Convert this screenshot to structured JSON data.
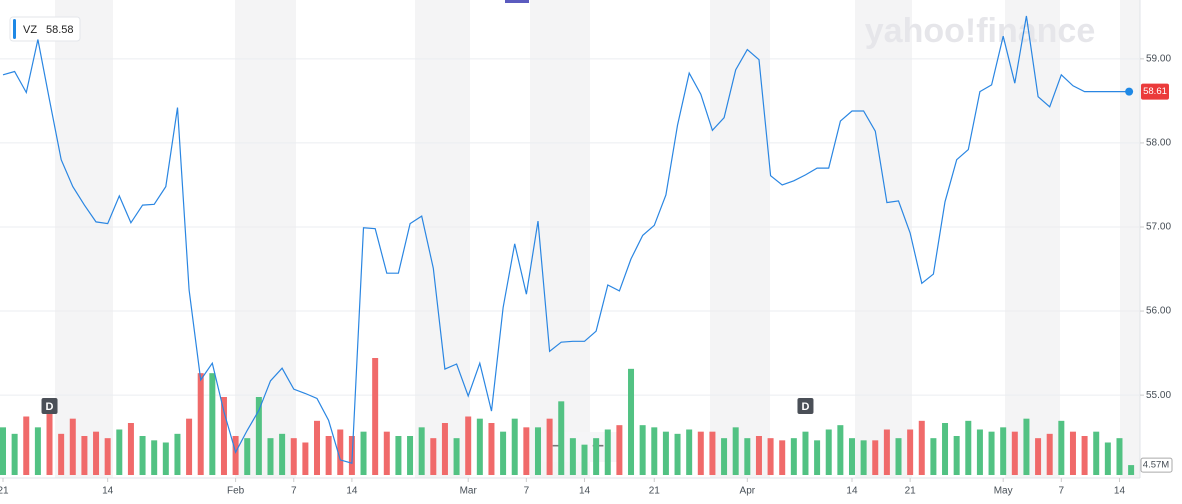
{
  "chart_data": {
    "type": "line",
    "symbol": "VZ",
    "legend_value": 58.58,
    "watermark": "yahoo!finance",
    "categories": [
      "21",
      null,
      null,
      null,
      null,
      null,
      null,
      null,
      null,
      "14",
      null,
      null,
      null,
      null,
      null,
      null,
      null,
      null,
      null,
      null,
      "Feb",
      null,
      null,
      null,
      null,
      "7",
      null,
      null,
      null,
      null,
      "14",
      null,
      null,
      null,
      null,
      null,
      null,
      null,
      null,
      null,
      "Mar",
      null,
      null,
      null,
      null,
      "7",
      null,
      null,
      null,
      null,
      "14",
      null,
      null,
      null,
      null,
      null,
      "21",
      null,
      null,
      null,
      null,
      null,
      null,
      null,
      "Apr",
      null,
      null,
      null,
      null,
      null,
      null,
      null,
      null,
      "14",
      null,
      null,
      null,
      null,
      "21",
      null,
      null,
      null,
      null,
      null,
      null,
      null,
      "May",
      null,
      null,
      null,
      null,
      "7",
      null,
      null,
      null,
      null,
      "14",
      null
    ],
    "series": [
      {
        "name": "VZ",
        "color": "#2a86e2",
        "values": [
          58.81,
          58.85,
          58.6,
          59.23,
          58.51,
          57.8,
          57.48,
          57.26,
          57.06,
          57.04,
          57.37,
          57.05,
          57.26,
          57.27,
          57.48,
          58.42,
          56.25,
          55.18,
          55.38,
          54.8,
          54.32,
          54.58,
          54.82,
          55.17,
          55.32,
          55.07,
          55.02,
          54.96,
          54.7,
          54.23,
          54.19,
          56.99,
          56.98,
          56.45,
          56.45,
          57.04,
          57.13,
          56.51,
          55.31,
          55.37,
          54.99,
          55.38,
          54.81,
          56.04,
          56.8,
          56.2,
          57.07,
          55.52,
          55.63,
          55.64,
          55.64,
          55.76,
          56.31,
          56.24,
          56.62,
          56.9,
          57.02,
          57.38,
          58.21,
          58.83,
          58.58,
          58.15,
          58.3,
          58.87,
          59.11,
          58.99,
          57.61,
          57.5,
          57.55,
          57.62,
          57.7,
          57.7,
          58.26,
          58.38,
          58.38,
          58.14,
          57.29,
          57.31,
          56.93,
          56.33,
          56.44,
          57.3,
          57.8,
          57.92,
          58.61,
          58.69,
          59.27,
          58.71,
          59.51,
          58.55,
          58.43,
          58.81,
          58.68,
          58.61,
          58.61,
          58.61,
          58.61,
          58.61
        ]
      },
      {
        "name": "Volume",
        "up_color": "#52c283",
        "down_color": "#f06a6a",
        "values": [
          22,
          19,
          27,
          22,
          33,
          19,
          26,
          18,
          20,
          17,
          21,
          24,
          18,
          16,
          15,
          19,
          26,
          47,
          47,
          36,
          18,
          17,
          36,
          17,
          19,
          17,
          15,
          25,
          18,
          21,
          18,
          20,
          54,
          20,
          18,
          18,
          22,
          17,
          24,
          17,
          27,
          26,
          24,
          20,
          26,
          22,
          22,
          26,
          34,
          17,
          14,
          17,
          21,
          23,
          49,
          23,
          22,
          20,
          19,
          21,
          20,
          20,
          17,
          22,
          17,
          18,
          17,
          16,
          17,
          20,
          16,
          21,
          23,
          17,
          16,
          16,
          21,
          17,
          21,
          25,
          17,
          24,
          18,
          25,
          21,
          20,
          22,
          20,
          26,
          17,
          19,
          25,
          20,
          18,
          20,
          15,
          17,
          4.57
        ]
      }
    ],
    "ylim": [
      54.05,
      59.7
    ],
    "yticks": [
      {
        "value": 55,
        "label": "55.00"
      },
      {
        "value": 56,
        "label": "56.00"
      },
      {
        "value": 57,
        "label": "57.00"
      },
      {
        "value": 58,
        "label": "58.00"
      },
      {
        "value": 59,
        "label": "59.00"
      }
    ],
    "vlim": [
      0,
      60
    ],
    "grid": true,
    "last_price": 58.61,
    "volume_tag": {
      "value": 4.57,
      "label": "4.57M"
    },
    "dividends": [
      {
        "label": "D",
        "category": 4
      },
      {
        "label": "D",
        "category": 69
      }
    ],
    "zoom_out": "−",
    "zoom_in": "+"
  }
}
